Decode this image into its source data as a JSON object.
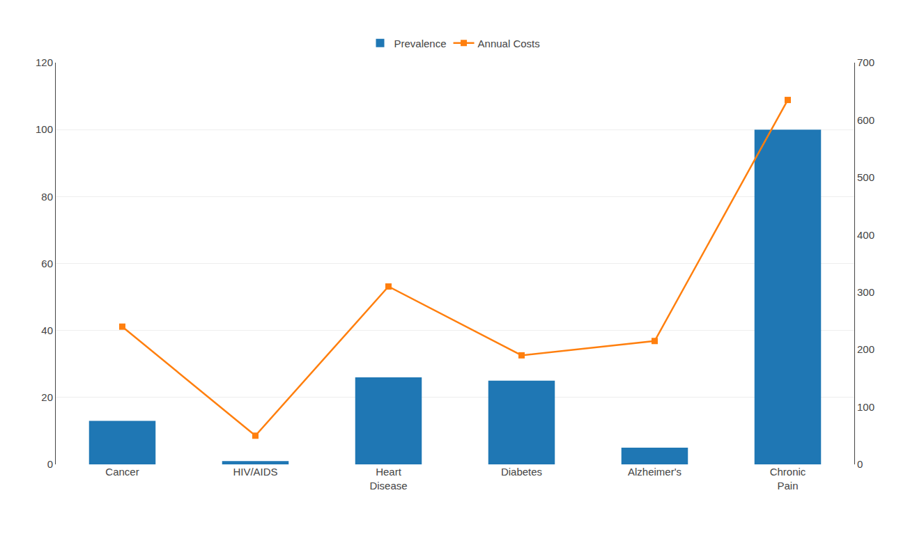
{
  "chart_data": {
    "type": "bar",
    "categories": [
      "Cancer",
      "HIV/AIDS",
      "Heart\nDisease",
      "Diabetes",
      "Alzheimer's",
      "Chronic\nPain"
    ],
    "series": [
      {
        "name": "Prevalence",
        "type": "bar",
        "values": [
          13,
          1,
          26,
          25,
          5,
          100
        ]
      },
      {
        "name": "Annual Costs",
        "type": "line",
        "marker": "square",
        "line_style": "solid",
        "axis": "y2",
        "values": [
          240,
          50,
          310,
          190,
          215,
          635
        ]
      }
    ],
    "ylim": [
      0,
      120
    ],
    "yticks": [
      0,
      20,
      40,
      60,
      80,
      100,
      120
    ],
    "y2lim": [
      0,
      700
    ],
    "y2ticks": [
      0,
      100,
      200,
      300,
      400,
      500,
      600,
      700
    ],
    "grid": true,
    "legend": "top"
  }
}
